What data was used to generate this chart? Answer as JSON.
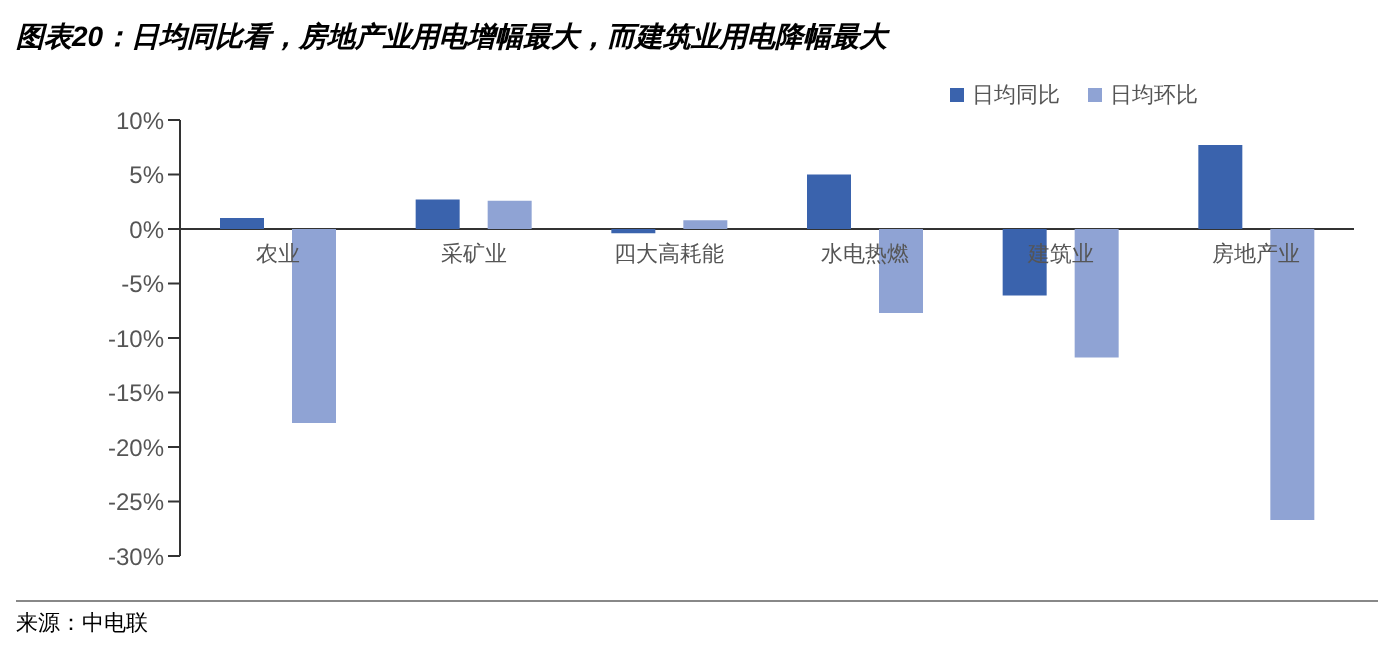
{
  "chart_data": {
    "type": "bar",
    "title": "图表20：日均同比看，房地产业用电增幅最大，而建筑业用电降幅最大",
    "categories": [
      "农业",
      "采矿业",
      "四大高耗能",
      "水电热燃",
      "建筑业",
      "房地产业"
    ],
    "series": [
      {
        "name": "日均同比",
        "color": "#3a63ad",
        "values": [
          1.0,
          2.7,
          -0.4,
          5.0,
          -6.1,
          7.7
        ]
      },
      {
        "name": "日均环比",
        "color": "#8fa3d4",
        "values": [
          -17.8,
          2.6,
          0.8,
          -7.7,
          -11.8,
          -26.7
        ]
      }
    ],
    "ylim": [
      -30,
      10
    ],
    "yticks": [
      {
        "value": -30,
        "label": "-30%"
      },
      {
        "value": -25,
        "label": "-25%"
      },
      {
        "value": -20,
        "label": "-20%"
      },
      {
        "value": -15,
        "label": "-15%"
      },
      {
        "value": -10,
        "label": "-10%"
      },
      {
        "value": -5,
        "label": "-5%"
      },
      {
        "value": 0,
        "label": "0%"
      },
      {
        "value": 5,
        "label": "5%"
      },
      {
        "value": 10,
        "label": "10%"
      }
    ],
    "legend": "top right",
    "grid": false,
    "annotations": [
      "来源：中电联"
    ]
  }
}
